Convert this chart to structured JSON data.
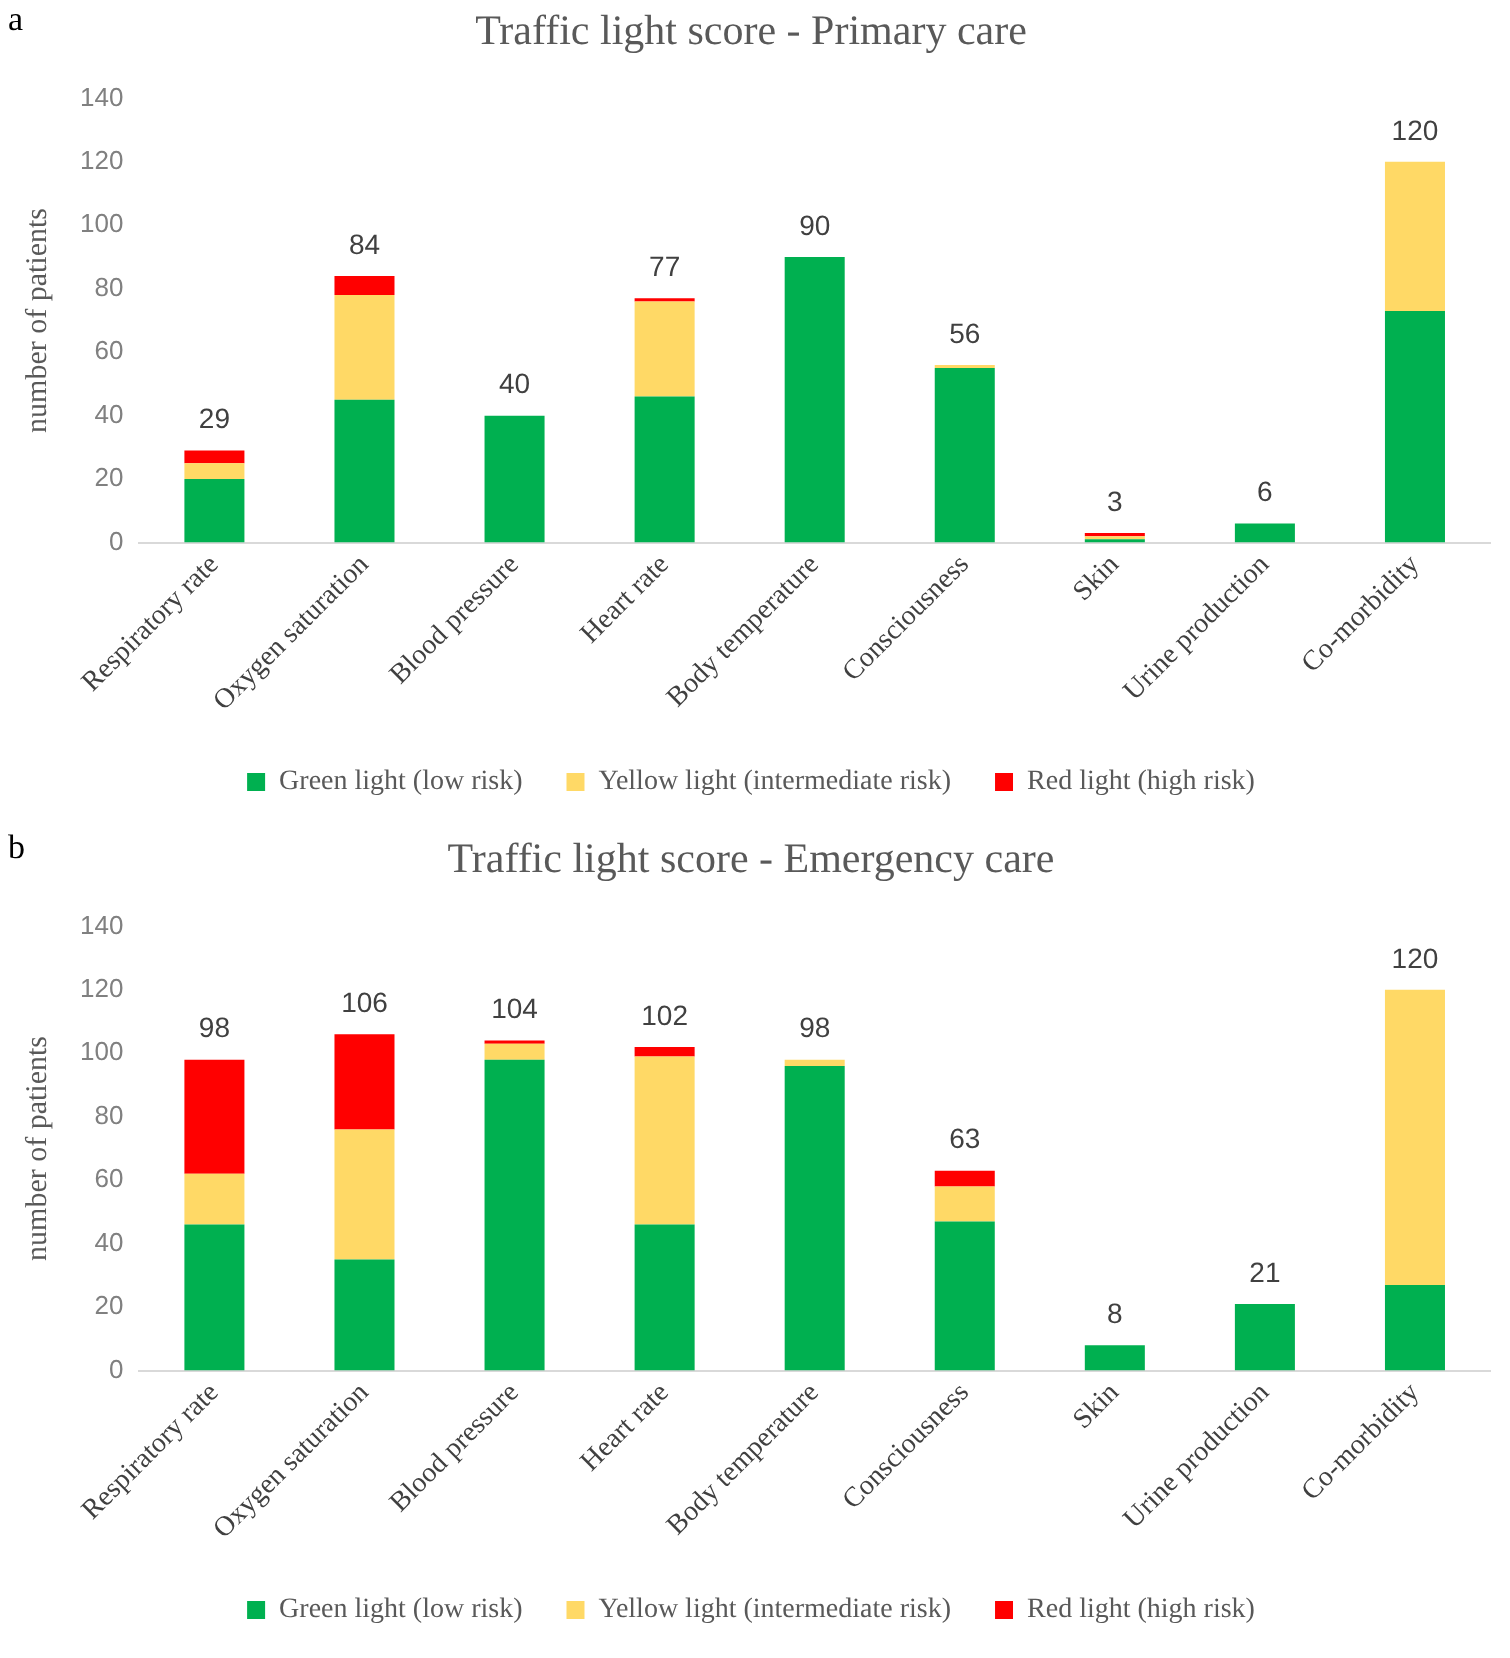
{
  "chart_data": [
    {
      "type": "bar",
      "stacked": true,
      "title": "Traffic light score - Primary care",
      "ylabel": "number of patients",
      "annotations": [
        "a"
      ],
      "categories": [
        "Respiratory rate",
        "Oxygen saturation",
        "Blood pressure",
        "Heart rate",
        "Body temperature",
        "Consciousness",
        "Skin",
        "Urine production",
        "Co-morbidity"
      ],
      "ylim": [
        0,
        140
      ],
      "yticks": [
        0,
        20,
        40,
        60,
        80,
        100,
        120,
        140
      ],
      "grid": false,
      "legend": "bottom",
      "series": [
        {
          "name": "Green light (low risk)",
          "color": "#00b050",
          "values": [
            20,
            45,
            40,
            46,
            90,
            55,
            1,
            6,
            73
          ]
        },
        {
          "name": "Yellow light (intermediate risk)",
          "color": "#ffd966",
          "values": [
            5,
            33,
            0,
            30,
            0,
            1,
            1,
            0,
            47
          ]
        },
        {
          "name": "Red light (high risk)",
          "color": "#ff0000",
          "values": [
            4,
            6,
            0,
            1,
            0,
            0,
            1,
            0,
            0
          ]
        }
      ],
      "totals": [
        "29",
        "84",
        "40",
        "77",
        "90",
        "56",
        "3",
        "6",
        "120"
      ]
    },
    {
      "type": "bar",
      "stacked": true,
      "title": "Traffic light score - Emergency care",
      "ylabel": "number of patients",
      "annotations": [
        "b"
      ],
      "categories": [
        "Respiratory rate",
        "Oxygen saturation",
        "Blood pressure",
        "Heart rate",
        "Body temperature",
        "Consciousness",
        "Skin",
        "Urine production",
        "Co-morbidity"
      ],
      "ylim": [
        0,
        140
      ],
      "yticks": [
        0,
        20,
        40,
        60,
        80,
        100,
        120,
        140
      ],
      "grid": false,
      "legend": "bottom",
      "series": [
        {
          "name": "Green light (low risk)",
          "color": "#00b050",
          "values": [
            46,
            35,
            98,
            46,
            96,
            47,
            8,
            21,
            27
          ]
        },
        {
          "name": "Yellow light (intermediate risk)",
          "color": "#ffd966",
          "values": [
            16,
            41,
            5,
            53,
            2,
            11,
            0,
            0,
            93
          ]
        },
        {
          "name": "Red light (high risk)",
          "color": "#ff0000",
          "values": [
            36,
            30,
            1,
            3,
            0,
            5,
            0,
            0,
            0
          ]
        }
      ],
      "totals": [
        "98",
        "106",
        "104",
        "102",
        "98",
        "63",
        "8",
        "21",
        "120"
      ]
    }
  ]
}
